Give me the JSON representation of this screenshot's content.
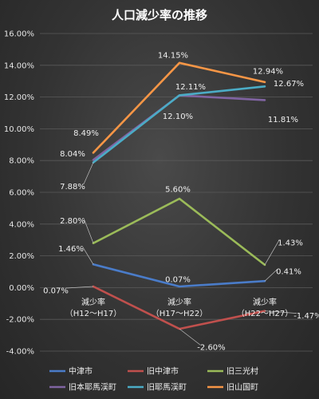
{
  "chart_data": {
    "type": "line",
    "title": "人口減少率の推移",
    "categories": [
      [
        "減少率",
        "（H12～H17）"
      ],
      [
        "減少率",
        "（H17～H22）"
      ],
      [
        "減少率",
        "（H22～H27）"
      ]
    ],
    "ylim": [
      -0.04,
      0.16
    ],
    "yticks": [
      "-4.00%",
      "-2.00%",
      "0.00%",
      "2.00%",
      "4.00%",
      "6.00%",
      "8.00%",
      "10.00%",
      "12.00%",
      "14.00%",
      "16.00%"
    ],
    "grid": true,
    "legend_position": "bottom",
    "series": [
      {
        "name": "中津市",
        "color": "#4a7cc9",
        "values": [
          0.0146,
          0.0007,
          0.0041
        ],
        "labels": [
          "1.46%",
          "0.07%",
          "0.41%"
        ]
      },
      {
        "name": "旧中津市",
        "color": "#c0504d",
        "values": [
          0.0007,
          -0.026,
          -0.0147
        ],
        "labels": [
          "0.07%",
          "-2.60%",
          "-1.47%"
        ]
      },
      {
        "name": "旧三光村",
        "color": "#9bbb59",
        "values": [
          0.028,
          0.056,
          0.0143
        ],
        "labels": [
          "2.80%",
          "5.60%",
          "1.43%"
        ]
      },
      {
        "name": "旧本耶馬渓町",
        "color": "#8064a2",
        "values": [
          0.0804,
          0.121,
          0.1181
        ],
        "labels": [
          "8.04%",
          "12.10%",
          "11.81%"
        ]
      },
      {
        "name": "旧耶馬渓町",
        "color": "#4bacc6",
        "values": [
          0.0788,
          0.1211,
          0.1267
        ],
        "labels": [
          "7.88%",
          "12.11%",
          "12.67%"
        ]
      },
      {
        "name": "旧山国町",
        "color": "#f79646",
        "values": [
          0.0849,
          0.1415,
          0.1294
        ],
        "labels": [
          "8.49%",
          "14.15%",
          "12.94%"
        ]
      }
    ]
  }
}
